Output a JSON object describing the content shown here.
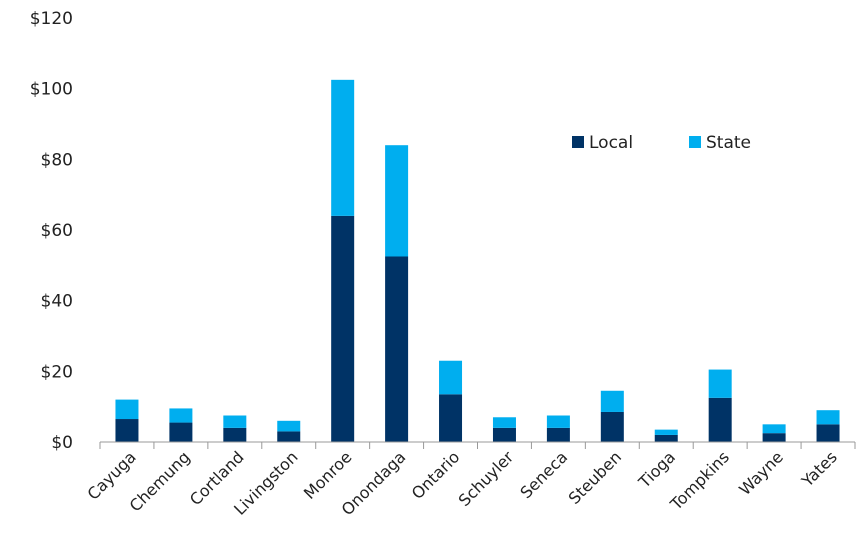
{
  "chart_data": {
    "type": "bar",
    "stacked": true,
    "categories": [
      "Cayuga",
      "Chemung",
      "Cortland",
      "Livingston",
      "Monroe",
      "Onondaga",
      "Ontario",
      "Schuyler",
      "Seneca",
      "Steuben",
      "Tioga",
      "Tompkins",
      "Wayne",
      "Yates"
    ],
    "series": [
      {
        "name": "Local",
        "color": "#003366",
        "values": [
          6.5,
          5.5,
          4,
          3,
          64,
          52.5,
          13.5,
          4,
          4,
          8.5,
          2,
          12.5,
          2.5,
          5
        ]
      },
      {
        "name": "State",
        "color": "#00AEEF",
        "values": [
          5.5,
          4,
          3.5,
          3,
          38.5,
          31.5,
          9.5,
          3,
          3.5,
          6,
          1.5,
          8,
          2.5,
          4
        ]
      }
    ],
    "yticks": [
      "$0",
      "$20",
      "$40",
      "$60",
      "$80",
      "$100",
      "$120"
    ],
    "ylim": [
      0,
      120
    ],
    "grid": false,
    "legend_position": "top-right"
  }
}
